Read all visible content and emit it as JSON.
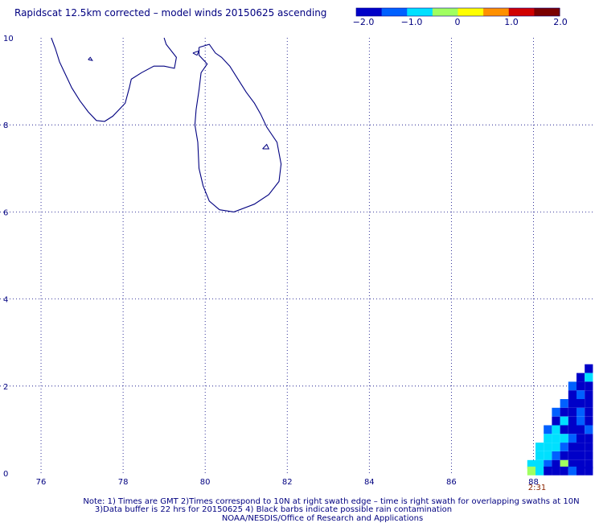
{
  "title": "Rapidscat 12.5km corrected – model winds 20150625 ascending",
  "colorbar": {
    "labels": [
      "−2.0",
      "−1.0",
      "0",
      "1.0",
      "2.0"
    ],
    "range": [
      -2.0,
      2.0
    ],
    "colors": [
      "#0000c8",
      "#0060ff",
      "#00e0ff",
      "#a0ff60",
      "#ffff00",
      "#ff9000",
      "#d00000",
      "#7a0000"
    ]
  },
  "time_label": "2:31",
  "notes": [
    "Note: 1) Times are GMT 2)Times correspond to 10N at right swath edge – time is right swath for overlapping swaths at 10N",
    "3)Data buffer is 22 hrs for 20150625 4) Black barbs indicate possible rain contamination",
    "NOAA/NESDIS/Office of Research and Applications"
  ],
  "chart_data": {
    "type": "heatmap",
    "title": "Rapidscat 12.5km corrected – model winds 20150625 ascending",
    "xlabel": "",
    "ylabel": "",
    "xlim": [
      75,
      89.5
    ],
    "ylim": [
      0,
      10
    ],
    "x_ticks": [
      "76",
      "78",
      "80",
      "82",
      "84",
      "86",
      "88"
    ],
    "y_ticks": [
      "0",
      "2",
      "4",
      "6",
      "8",
      "10"
    ],
    "grid": true,
    "grid_x_values": [
      76,
      78,
      80,
      82,
      84,
      86,
      88
    ],
    "grid_y_values": [
      0,
      2,
      4,
      6,
      8,
      10
    ],
    "color_range": [
      -2.0,
      2.0
    ],
    "coast_color": "#000080",
    "swath_cells": [
      [
        89.35,
        2.4,
        -2.0
      ],
      [
        89.15,
        2.2,
        -1.6
      ],
      [
        89.35,
        2.2,
        -1.0
      ],
      [
        88.95,
        2.0,
        -1.5
      ],
      [
        89.15,
        2.0,
        -2.0
      ],
      [
        89.35,
        2.0,
        -1.6
      ],
      [
        88.95,
        1.8,
        -2.0
      ],
      [
        89.15,
        1.8,
        -1.5
      ],
      [
        89.35,
        1.8,
        -1.8
      ],
      [
        88.75,
        1.6,
        -1.5
      ],
      [
        88.95,
        1.6,
        -2.0
      ],
      [
        89.15,
        1.6,
        -2.0
      ],
      [
        89.35,
        1.6,
        -1.6
      ],
      [
        88.55,
        1.4,
        -1.5
      ],
      [
        88.75,
        1.4,
        -2.0
      ],
      [
        88.95,
        1.4,
        -1.6
      ],
      [
        89.15,
        1.4,
        -1.5
      ],
      [
        89.35,
        1.4,
        -2.0
      ],
      [
        88.55,
        1.2,
        -2.0
      ],
      [
        88.75,
        1.2,
        -1.0
      ],
      [
        88.95,
        1.2,
        -2.0
      ],
      [
        89.15,
        1.2,
        -1.5
      ],
      [
        89.35,
        1.2,
        -2.0
      ],
      [
        88.35,
        1.0,
        -1.5
      ],
      [
        88.55,
        1.0,
        -1.0
      ],
      [
        88.75,
        1.0,
        -1.6
      ],
      [
        88.95,
        1.0,
        -2.0
      ],
      [
        89.15,
        1.0,
        -2.0
      ],
      [
        89.35,
        1.0,
        -1.5
      ],
      [
        88.35,
        0.8,
        -1.0
      ],
      [
        88.55,
        0.8,
        -0.9
      ],
      [
        88.75,
        0.8,
        -1.0
      ],
      [
        88.95,
        0.8,
        -1.5
      ],
      [
        89.15,
        0.8,
        -2.0
      ],
      [
        89.35,
        0.8,
        -2.0
      ],
      [
        88.15,
        0.6,
        -1.0
      ],
      [
        88.35,
        0.6,
        -0.9
      ],
      [
        88.55,
        0.6,
        -1.0
      ],
      [
        88.75,
        0.6,
        -1.5
      ],
      [
        88.95,
        0.6,
        -2.0
      ],
      [
        89.15,
        0.6,
        -2.0
      ],
      [
        89.35,
        0.6,
        -2.0
      ],
      [
        88.15,
        0.4,
        -1.0
      ],
      [
        88.35,
        0.4,
        -0.9
      ],
      [
        88.55,
        0.4,
        -1.5
      ],
      [
        88.75,
        0.4,
        -2.0
      ],
      [
        88.95,
        0.4,
        -1.8
      ],
      [
        89.15,
        0.4,
        -2.0
      ],
      [
        89.35,
        0.4,
        -2.0
      ],
      [
        87.95,
        0.2,
        -0.6
      ],
      [
        88.15,
        0.2,
        -0.9
      ],
      [
        88.35,
        0.2,
        -1.5
      ],
      [
        88.55,
        0.2,
        -2.0
      ],
      [
        88.75,
        0.2,
        -0.3
      ],
      [
        88.95,
        0.2,
        -2.0
      ],
      [
        89.15,
        0.2,
        -2.0
      ],
      [
        89.35,
        0.2,
        -2.0
      ],
      [
        87.95,
        0.05,
        -0.3
      ],
      [
        88.15,
        0.05,
        -1.0
      ],
      [
        88.35,
        0.05,
        -1.6
      ],
      [
        88.55,
        0.05,
        -2.0
      ],
      [
        88.75,
        0.05,
        -1.8
      ],
      [
        88.95,
        0.05,
        -1.5
      ],
      [
        89.15,
        0.05,
        -2.0
      ],
      [
        89.35,
        0.05,
        -2.0
      ]
    ],
    "coastline_india": [
      [
        76.25,
        10.0
      ],
      [
        76.35,
        9.75
      ],
      [
        76.45,
        9.45
      ],
      [
        76.55,
        9.25
      ],
      [
        76.75,
        8.85
      ],
      [
        76.95,
        8.55
      ],
      [
        77.15,
        8.3
      ],
      [
        77.35,
        8.1
      ],
      [
        77.55,
        8.08
      ],
      [
        77.75,
        8.2
      ],
      [
        78.05,
        8.5
      ],
      [
        78.15,
        8.85
      ],
      [
        78.2,
        9.05
      ],
      [
        78.45,
        9.2
      ],
      [
        78.75,
        9.35
      ],
      [
        79.0,
        9.35
      ],
      [
        79.25,
        9.3
      ],
      [
        79.3,
        9.55
      ],
      [
        79.05,
        9.85
      ],
      [
        79.0,
        10.0
      ]
    ],
    "coastline_srilanka": [
      [
        79.85,
        9.78
      ],
      [
        80.1,
        9.85
      ],
      [
        80.25,
        9.65
      ],
      [
        80.4,
        9.55
      ],
      [
        80.6,
        9.35
      ],
      [
        80.8,
        9.05
      ],
      [
        81.0,
        8.75
      ],
      [
        81.2,
        8.5
      ],
      [
        81.35,
        8.25
      ],
      [
        81.5,
        7.95
      ],
      [
        81.75,
        7.6
      ],
      [
        81.85,
        7.1
      ],
      [
        81.8,
        6.7
      ],
      [
        81.55,
        6.4
      ],
      [
        81.2,
        6.18
      ],
      [
        80.7,
        6.0
      ],
      [
        80.35,
        6.05
      ],
      [
        80.1,
        6.25
      ],
      [
        79.95,
        6.6
      ],
      [
        79.85,
        7.0
      ],
      [
        79.82,
        7.6
      ],
      [
        79.75,
        8.0
      ],
      [
        79.78,
        8.35
      ],
      [
        79.85,
        8.8
      ],
      [
        79.9,
        9.2
      ],
      [
        80.05,
        9.4
      ],
      [
        79.85,
        9.6
      ],
      [
        79.85,
        9.78
      ]
    ],
    "islands": [
      [
        [
          79.7,
          9.65
        ],
        [
          79.85,
          9.7
        ],
        [
          79.8,
          9.6
        ],
        [
          79.7,
          9.65
        ]
      ],
      [
        [
          81.4,
          7.45
        ],
        [
          81.5,
          7.55
        ],
        [
          81.55,
          7.45
        ],
        [
          81.4,
          7.45
        ]
      ],
      [
        [
          77.15,
          9.5
        ],
        [
          77.2,
          9.55
        ],
        [
          77.25,
          9.48
        ],
        [
          77.15,
          9.5
        ]
      ]
    ]
  }
}
